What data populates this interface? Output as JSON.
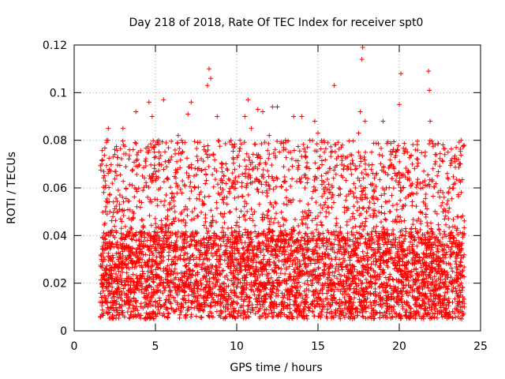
{
  "chart_data": {
    "type": "scatter",
    "title": "Day 218 of 2018, Rate Of TEC Index for receiver spt0",
    "xlabel": "GPS time / hours",
    "ylabel": "ROTI / TECUs",
    "xlim": [
      0,
      25
    ],
    "ylim": [
      0,
      0.12
    ],
    "xticks": [
      0,
      5,
      10,
      15,
      20,
      25
    ],
    "yticks": [
      0,
      0.02,
      0.04,
      0.06,
      0.08,
      0.1,
      0.12
    ],
    "xtick_labels": [
      "0",
      "5",
      "10",
      "15",
      "20",
      "25"
    ],
    "ytick_labels": [
      "0",
      "0.02",
      "0.04",
      "0.06",
      "0.08",
      "0.1",
      "0.12"
    ],
    "grid": true,
    "marker": "+",
    "series": [
      {
        "name": "ROTI",
        "color": "#ff0000",
        "data_coverage_hours": [
          1.6,
          24.0
        ],
        "typical_range": [
          0.005,
          0.08
        ],
        "points": [
          [
            1.6,
            0.012
          ],
          [
            1.7,
            0.07
          ],
          [
            1.8,
            0.03
          ],
          [
            1.9,
            0.06
          ],
          [
            2.0,
            0.08
          ],
          [
            2.1,
            0.085
          ],
          [
            2.2,
            0.05
          ],
          [
            2.3,
            0.02
          ],
          [
            2.5,
            0.074
          ],
          [
            2.6,
            0.009
          ],
          [
            2.7,
            0.05
          ],
          [
            3.0,
            0.085
          ],
          [
            3.2,
            0.03
          ],
          [
            3.4,
            0.076
          ],
          [
            3.5,
            0.008
          ],
          [
            3.6,
            0.05
          ],
          [
            3.8,
            0.092
          ],
          [
            4.0,
            0.03
          ],
          [
            4.2,
            0.065
          ],
          [
            4.4,
            0.005
          ],
          [
            4.5,
            0.075
          ],
          [
            4.6,
            0.096
          ],
          [
            4.8,
            0.09
          ],
          [
            5.0,
            0.04
          ],
          [
            5.2,
            0.08
          ],
          [
            5.3,
            0.06
          ],
          [
            5.5,
            0.097
          ],
          [
            5.7,
            0.02
          ],
          [
            6.0,
            0.073
          ],
          [
            6.2,
            0.05
          ],
          [
            6.4,
            0.082
          ],
          [
            6.6,
            0.08
          ],
          [
            6.8,
            0.03
          ],
          [
            7.0,
            0.091
          ],
          [
            7.2,
            0.096
          ],
          [
            7.4,
            0.06
          ],
          [
            7.6,
            0.079
          ],
          [
            7.8,
            0.02
          ],
          [
            8.0,
            0.076
          ],
          [
            8.2,
            0.103
          ],
          [
            8.3,
            0.11
          ],
          [
            8.4,
            0.106
          ],
          [
            8.6,
            0.04
          ],
          [
            8.8,
            0.09
          ],
          [
            9.0,
            0.06
          ],
          [
            9.2,
            0.01
          ],
          [
            9.4,
            0.068
          ],
          [
            9.6,
            0.05
          ],
          [
            9.8,
            0.077
          ],
          [
            10.0,
            0.03
          ],
          [
            10.2,
            0.08
          ],
          [
            10.5,
            0.09
          ],
          [
            10.7,
            0.097
          ],
          [
            10.9,
            0.085
          ],
          [
            11.1,
            0.05
          ],
          [
            11.3,
            0.093
          ],
          [
            11.6,
            0.092
          ],
          [
            11.8,
            0.07
          ],
          [
            12.0,
            0.082
          ],
          [
            12.2,
            0.094
          ],
          [
            12.5,
            0.094
          ],
          [
            12.7,
            0.04
          ],
          [
            13.0,
            0.08
          ],
          [
            13.2,
            0.075
          ],
          [
            13.5,
            0.09
          ],
          [
            13.7,
            0.02
          ],
          [
            14.0,
            0.09
          ],
          [
            14.2,
            0.06
          ],
          [
            14.5,
            0.08
          ],
          [
            14.8,
            0.088
          ],
          [
            15.0,
            0.083
          ],
          [
            15.2,
            0.03
          ],
          [
            15.5,
            0.05
          ],
          [
            15.8,
            0.075
          ],
          [
            16.0,
            0.103
          ],
          [
            16.3,
            0.06
          ],
          [
            16.5,
            0.078
          ],
          [
            16.8,
            0.073
          ],
          [
            17.0,
            0.07
          ],
          [
            17.3,
            0.06
          ],
          [
            17.5,
            0.083
          ],
          [
            17.6,
            0.092
          ],
          [
            17.7,
            0.114
          ],
          [
            17.75,
            0.119
          ],
          [
            17.9,
            0.088
          ],
          [
            18.0,
            0.05
          ],
          [
            18.3,
            0.075
          ],
          [
            18.6,
            0.04
          ],
          [
            19.0,
            0.088
          ],
          [
            19.2,
            0.06
          ],
          [
            19.5,
            0.074
          ],
          [
            19.8,
            0.063
          ],
          [
            20.0,
            0.095
          ],
          [
            20.1,
            0.108
          ],
          [
            20.2,
            0.06
          ],
          [
            20.5,
            0.075
          ],
          [
            20.8,
            0.07
          ],
          [
            21.0,
            0.076
          ],
          [
            21.3,
            0.05
          ],
          [
            21.6,
            0.075
          ],
          [
            21.8,
            0.109
          ],
          [
            21.85,
            0.101
          ],
          [
            21.9,
            0.088
          ],
          [
            22.2,
            0.07
          ],
          [
            22.5,
            0.02
          ],
          [
            22.8,
            0.074
          ],
          [
            23.0,
            0.075
          ],
          [
            23.3,
            0.04
          ],
          [
            23.5,
            0.077
          ],
          [
            23.8,
            0.08
          ],
          [
            24.0,
            0.01
          ]
        ]
      }
    ]
  }
}
